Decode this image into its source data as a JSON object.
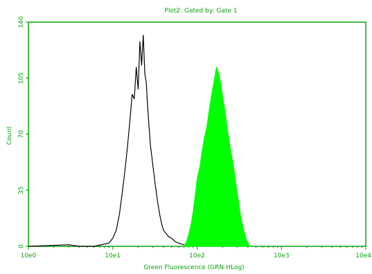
{
  "chart_data": {
    "type": "area",
    "title": "Plot2: Gated by: Gate 1",
    "xlabel": "Green Fluorescence (GRN-HLog)",
    "ylabel": "Count",
    "x_scale": "log",
    "xlim": [
      1,
      10000
    ],
    "ylim": [
      0,
      140
    ],
    "x_ticks": [
      "10e0",
      "10e1",
      "10e2",
      "10e3",
      "10e4"
    ],
    "y_ticks": [
      "0",
      "35",
      "70",
      "105",
      "140"
    ],
    "grid": false,
    "colors": {
      "frame": "#0aa00a",
      "control": "#000000",
      "sample": "#00ff00"
    },
    "series": [
      {
        "style": "outline",
        "x": [
          1.0,
          3.0,
          4.0,
          6.0,
          9.0,
          10.0,
          11.0,
          12.0,
          13.0,
          14.0,
          15.0,
          16.0,
          17.0,
          18.0,
          19.0,
          20.0,
          21.0,
          22.0,
          23.0,
          24.0,
          25.0,
          26.0,
          27.0,
          28.0,
          30.0,
          32.0,
          34.0,
          36.0,
          38.0,
          40.0,
          43.0,
          46.0,
          50.0,
          55.0,
          60.0,
          70.0,
          100.0
        ],
        "values": [
          0,
          1,
          0,
          0,
          2,
          5,
          10,
          20,
          34,
          48,
          63,
          79,
          95,
          92,
          112,
          98,
          128,
          113,
          132,
          108,
          102,
          86,
          74,
          63,
          50,
          38,
          28,
          20,
          14,
          10,
          8,
          6,
          5,
          3,
          2,
          1,
          0
        ]
      },
      {
        "style": "filled",
        "x": [
          70.0,
          75.0,
          80.0,
          85.0,
          90.0,
          95.0,
          100.0,
          108.0,
          115.0,
          122.0,
          130.0,
          140.0,
          150.0,
          160.0,
          170.0,
          180.0,
          190.0,
          200.0,
          215.0,
          230.0,
          250.0,
          270.0,
          290.0,
          310.0,
          330.0,
          350.0,
          380.0,
          420.0
        ],
        "values": [
          0,
          3,
          8,
          14,
          22,
          32,
          42,
          50,
          60,
          68,
          74,
          86,
          96,
          104,
          112,
          108,
          102,
          94,
          84,
          72,
          60,
          50,
          38,
          28,
          18,
          12,
          5,
          0
        ]
      }
    ]
  }
}
